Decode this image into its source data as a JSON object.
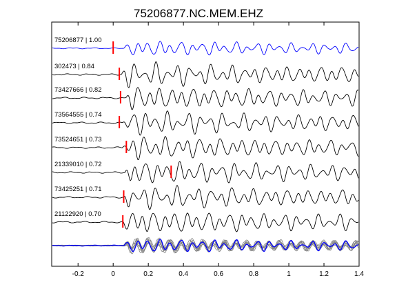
{
  "chart_data": {
    "type": "line",
    "title": "75206877.NC.MEM.EHZ",
    "xlabel": "",
    "ylabel": "",
    "xlim": [
      -0.35,
      1.4
    ],
    "xticks": [
      -0.2,
      0,
      0.2,
      0.4,
      0.6,
      0.8,
      1,
      1.2,
      1.4
    ],
    "xtick_labels": [
      "-0.2",
      "0",
      "0.2",
      "0.4",
      "0.6",
      "0.8",
      "1",
      "1.2",
      "1.4"
    ],
    "grid": false,
    "traces": [
      {
        "label": "75206877 | 1.00",
        "event_id": "75206877",
        "correlation": 1.0,
        "pick_time": 0.0,
        "color": "#0000ff"
      },
      {
        "label": "302473 | 0.84",
        "event_id": "302473",
        "correlation": 0.84,
        "pick_time": 0.035,
        "color": "#000000"
      },
      {
        "label": "73427666 | 0.82",
        "event_id": "73427666",
        "correlation": 0.82,
        "pick_time": 0.042,
        "color": "#000000"
      },
      {
        "label": "73564555 | 0.74",
        "event_id": "73564555",
        "correlation": 0.74,
        "pick_time": 0.035,
        "color": "#000000"
      },
      {
        "label": "73524651 | 0.73",
        "event_id": "73524651",
        "correlation": 0.73,
        "pick_time": 0.075,
        "color": "#000000"
      },
      {
        "label": "21339010 | 0.72",
        "event_id": "21339010",
        "correlation": 0.72,
        "pick_time": 0.33,
        "color": "#000000"
      },
      {
        "label": "73425251 | 0.71",
        "event_id": "73425251",
        "correlation": 0.71,
        "pick_time": 0.06,
        "color": "#000000"
      },
      {
        "label": "21122920 | 0.70",
        "event_id": "21122920",
        "correlation": 0.7,
        "pick_time": 0.055,
        "color": "#000000"
      }
    ],
    "stack": {
      "overlay_color": "#808080",
      "reference_color": "#0000ff"
    },
    "pick_color": "#ff0000"
  }
}
